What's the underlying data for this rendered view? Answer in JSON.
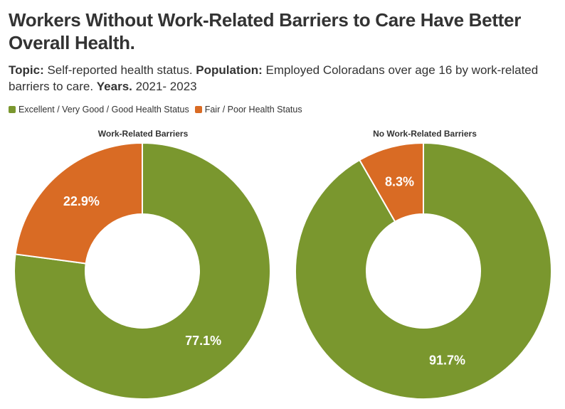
{
  "title": "Workers Without Work-Related Barriers to Care Have Better Overall Health.",
  "subtitle": {
    "topic_label": "Topic:",
    "topic_text": " Self-reported health status. ",
    "population_label": "Population:",
    "population_text": " Employed Coloradans over age 16 by work-related barriers to care. ",
    "years_label": "Years.",
    "years_text": " 2021- 2023"
  },
  "legend": [
    {
      "label": "Excellent / Very Good / Good Health Status",
      "color": "#7a972e"
    },
    {
      "label": "Fair / Poor Health Status",
      "color": "#d96b24"
    }
  ],
  "chart_data": [
    {
      "type": "pie",
      "title": "Work-Related Barriers",
      "categories": [
        "Excellent / Very Good / Good Health Status",
        "Fair / Poor Health Status"
      ],
      "values": [
        77.1,
        22.9
      ],
      "labels": [
        "77.1%",
        "22.9%"
      ],
      "colors": [
        "#7a972e",
        "#d96b24"
      ],
      "donut": true
    },
    {
      "type": "pie",
      "title": "No Work-Related Barriers",
      "categories": [
        "Excellent / Very Good / Good Health Status",
        "Fair / Poor Health Status"
      ],
      "values": [
        91.7,
        8.3
      ],
      "labels": [
        "91.7%",
        "8.3%"
      ],
      "colors": [
        "#7a972e",
        "#d96b24"
      ],
      "donut": true
    }
  ]
}
